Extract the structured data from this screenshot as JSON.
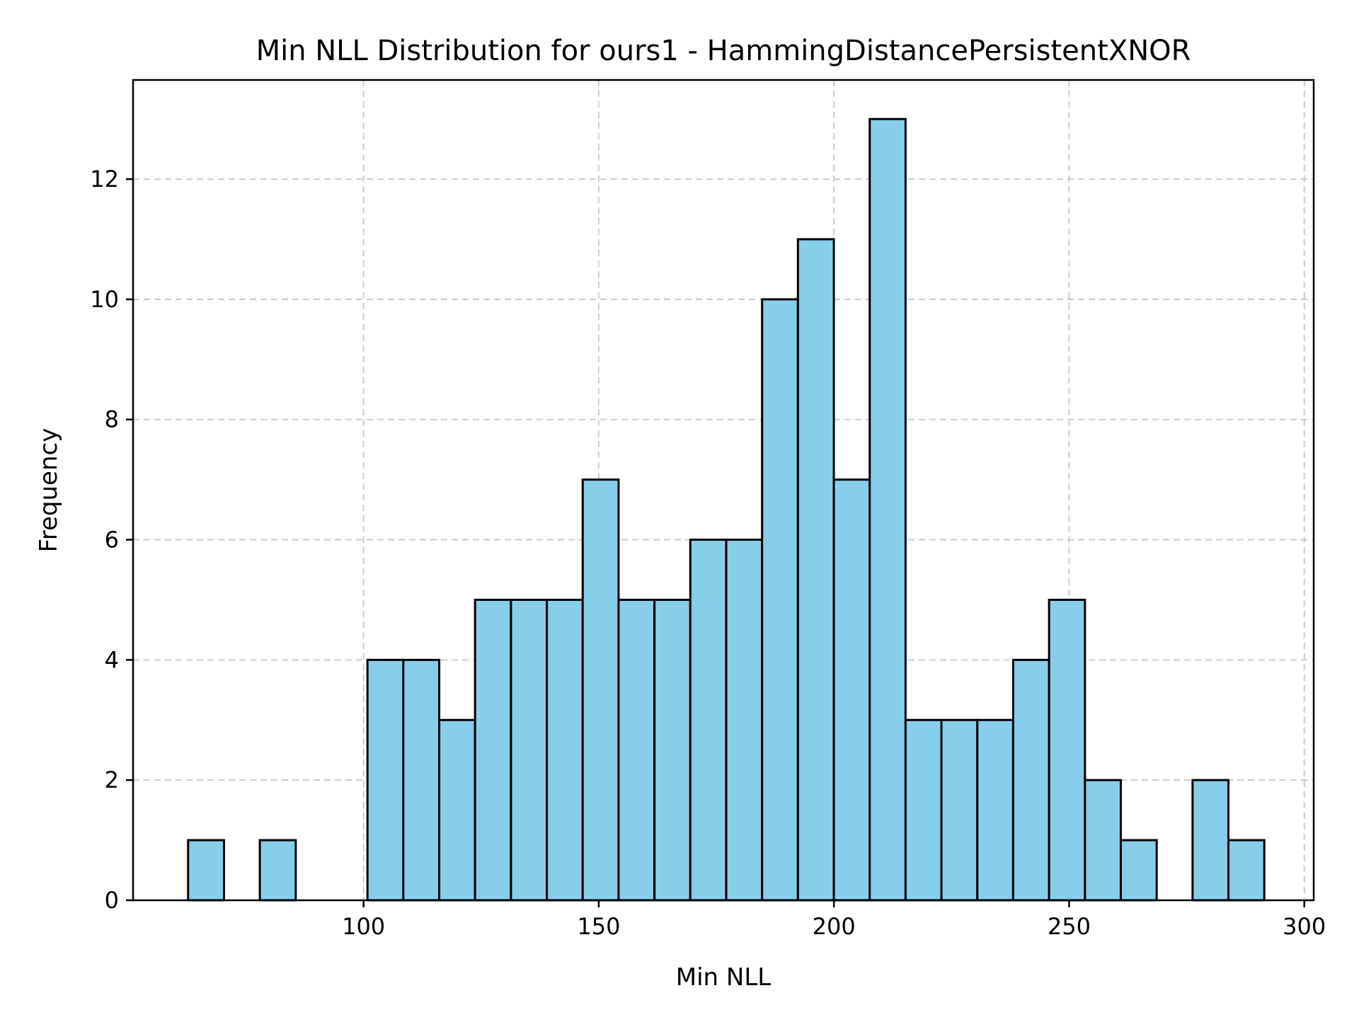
{
  "chart_data": {
    "type": "bar",
    "title": "Min NLL Distribution for ours1 - HammingDistancePersistentXNOR",
    "xlabel": "Min NLL",
    "ylabel": "Frequency",
    "xlim": [
      51,
      302
    ],
    "ylim": [
      0,
      13.65
    ],
    "xticks": [
      100,
      150,
      200,
      250,
      300
    ],
    "yticks": [
      0,
      2,
      4,
      6,
      8,
      10,
      12
    ],
    "grid": true,
    "bar_color": "#87CEEB",
    "edge_color": "#000000",
    "bin_edges": [
      62.7,
      70.33,
      77.95,
      85.58,
      93.21,
      100.83,
      108.46,
      116.09,
      123.71,
      131.34,
      138.97,
      146.59,
      154.22,
      161.85,
      169.47,
      177.1,
      184.73,
      192.35,
      199.98,
      207.61,
      215.23,
      222.86,
      230.49,
      238.11,
      245.74,
      253.37,
      260.99,
      268.62,
      276.25,
      283.87,
      291.5
    ],
    "counts": [
      1,
      0,
      1,
      0,
      0,
      4,
      4,
      3,
      5,
      5,
      5,
      7,
      5,
      5,
      6,
      6,
      10,
      11,
      7,
      13,
      3,
      3,
      3,
      4,
      5,
      2,
      1,
      0,
      2,
      1
    ]
  }
}
